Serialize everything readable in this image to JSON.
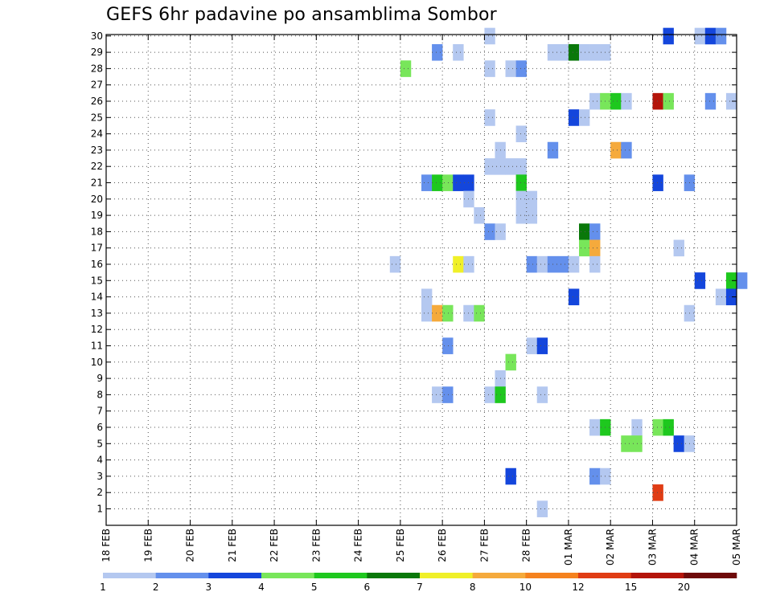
{
  "chart_data": {
    "type": "heatmap",
    "title": "GEFS 6hr padavine po ansamblima Sombor",
    "x_tick_labels": [
      "18 FEB",
      "19 FEB",
      "20 FEB",
      "21 FEB",
      "22 FEB",
      "23 FEB",
      "24 FEB",
      "25 FEB",
      "26 FEB",
      "27 FEB",
      "28 FEB",
      "01 MAR",
      "02 MAR",
      "03 MAR",
      "04 MAR",
      "05 MAR"
    ],
    "y_tick_labels": [
      "1",
      "2",
      "3",
      "4",
      "5",
      "6",
      "7",
      "8",
      "9",
      "10",
      "11",
      "12",
      "13",
      "14",
      "15",
      "16",
      "17",
      "18",
      "19",
      "20",
      "21",
      "22",
      "23",
      "24",
      "25",
      "26",
      "27",
      "28",
      "29",
      "30"
    ],
    "ylim": [
      1,
      30
    ],
    "grid": true,
    "color_scale": {
      "labels": [
        "1",
        "2",
        "3",
        "4",
        "5",
        "6",
        "7",
        "8",
        "10",
        "12",
        "15",
        "20"
      ],
      "colors": [
        "#b4c8f0",
        "#6490ec",
        "#1446dc",
        "#78e65a",
        "#1ec81e",
        "#0a780a",
        "#f0f028",
        "#f5aa3c",
        "#f5821e",
        "#e03c14",
        "#b4140a",
        "#6e0a0a"
      ]
    },
    "cells_note": "each cell: ensemble member, 6-hourly step index from 18 FEB 00z, precipitation level index in color_scale",
    "cells": [
      {
        "m": 30,
        "t": 36,
        "l": 0
      },
      {
        "m": 30,
        "t": 53,
        "l": 2
      },
      {
        "m": 30,
        "t": 56,
        "l": 0
      },
      {
        "m": 30,
        "t": 57,
        "l": 2
      },
      {
        "m": 30,
        "t": 58,
        "l": 1
      },
      {
        "m": 29,
        "t": 31,
        "l": 1
      },
      {
        "m": 29,
        "t": 33,
        "l": 0
      },
      {
        "m": 29,
        "t": 42,
        "l": 0
      },
      {
        "m": 29,
        "t": 43,
        "l": 0
      },
      {
        "m": 29,
        "t": 44,
        "l": 5
      },
      {
        "m": 29,
        "t": 45,
        "l": 0
      },
      {
        "m": 29,
        "t": 46,
        "l": 0
      },
      {
        "m": 29,
        "t": 47,
        "l": 0
      },
      {
        "m": 28,
        "t": 28,
        "l": 3
      },
      {
        "m": 28,
        "t": 36,
        "l": 0
      },
      {
        "m": 28,
        "t": 38,
        "l": 0
      },
      {
        "m": 28,
        "t": 39,
        "l": 1
      },
      {
        "m": 26,
        "t": 46,
        "l": 0
      },
      {
        "m": 26,
        "t": 47,
        "l": 3
      },
      {
        "m": 26,
        "t": 48,
        "l": 4
      },
      {
        "m": 26,
        "t": 49,
        "l": 0
      },
      {
        "m": 26,
        "t": 52,
        "l": 10
      },
      {
        "m": 26,
        "t": 53,
        "l": 3
      },
      {
        "m": 26,
        "t": 57,
        "l": 1
      },
      {
        "m": 26,
        "t": 59,
        "l": 0
      },
      {
        "m": 25,
        "t": 36,
        "l": 0
      },
      {
        "m": 25,
        "t": 44,
        "l": 2
      },
      {
        "m": 25,
        "t": 45,
        "l": 0
      },
      {
        "m": 24,
        "t": 39,
        "l": 0
      },
      {
        "m": 23,
        "t": 37,
        "l": 0
      },
      {
        "m": 23,
        "t": 42,
        "l": 1
      },
      {
        "m": 23,
        "t": 48,
        "l": 7
      },
      {
        "m": 23,
        "t": 49,
        "l": 1
      },
      {
        "m": 22,
        "t": 36,
        "l": 0
      },
      {
        "m": 22,
        "t": 37,
        "l": 0
      },
      {
        "m": 22,
        "t": 38,
        "l": 0
      },
      {
        "m": 22,
        "t": 39,
        "l": 0
      },
      {
        "m": 21,
        "t": 30,
        "l": 1
      },
      {
        "m": 21,
        "t": 31,
        "l": 4
      },
      {
        "m": 21,
        "t": 32,
        "l": 3
      },
      {
        "m": 21,
        "t": 33,
        "l": 2
      },
      {
        "m": 21,
        "t": 34,
        "l": 2
      },
      {
        "m": 21,
        "t": 39,
        "l": 4
      },
      {
        "m": 21,
        "t": 52,
        "l": 2
      },
      {
        "m": 21,
        "t": 55,
        "l": 1
      },
      {
        "m": 20,
        "t": 34,
        "l": 0
      },
      {
        "m": 20,
        "t": 39,
        "l": 0
      },
      {
        "m": 20,
        "t": 40,
        "l": 0
      },
      {
        "m": 19,
        "t": 35,
        "l": 0
      },
      {
        "m": 19,
        "t": 39,
        "l": 0
      },
      {
        "m": 19,
        "t": 40,
        "l": 0
      },
      {
        "m": 18,
        "t": 36,
        "l": 1
      },
      {
        "m": 18,
        "t": 37,
        "l": 0
      },
      {
        "m": 18,
        "t": 45,
        "l": 5
      },
      {
        "m": 18,
        "t": 46,
        "l": 1
      },
      {
        "m": 17,
        "t": 45,
        "l": 3
      },
      {
        "m": 17,
        "t": 46,
        "l": 7
      },
      {
        "m": 17,
        "t": 54,
        "l": 0
      },
      {
        "m": 16,
        "t": 27,
        "l": 0
      },
      {
        "m": 16,
        "t": 33,
        "l": 6
      },
      {
        "m": 16,
        "t": 34,
        "l": 0
      },
      {
        "m": 16,
        "t": 40,
        "l": 1
      },
      {
        "m": 16,
        "t": 41,
        "l": 0
      },
      {
        "m": 16,
        "t": 42,
        "l": 1
      },
      {
        "m": 16,
        "t": 43,
        "l": 1
      },
      {
        "m": 16,
        "t": 44,
        "l": 0
      },
      {
        "m": 16,
        "t": 46,
        "l": 0
      },
      {
        "m": 15,
        "t": 56,
        "l": 2
      },
      {
        "m": 15,
        "t": 59,
        "l": 4
      },
      {
        "m": 15,
        "t": 60,
        "l": 1
      },
      {
        "m": 14,
        "t": 30,
        "l": 0
      },
      {
        "m": 14,
        "t": 44,
        "l": 2
      },
      {
        "m": 14,
        "t": 58,
        "l": 0
      },
      {
        "m": 14,
        "t": 59,
        "l": 2
      },
      {
        "m": 13,
        "t": 30,
        "l": 0
      },
      {
        "m": 13,
        "t": 31,
        "l": 7
      },
      {
        "m": 13,
        "t": 32,
        "l": 3
      },
      {
        "m": 13,
        "t": 34,
        "l": 0
      },
      {
        "m": 13,
        "t": 35,
        "l": 3
      },
      {
        "m": 13,
        "t": 55,
        "l": 0
      },
      {
        "m": 11,
        "t": 32,
        "l": 1
      },
      {
        "m": 11,
        "t": 40,
        "l": 0
      },
      {
        "m": 11,
        "t": 41,
        "l": 2
      },
      {
        "m": 10,
        "t": 38,
        "l": 3
      },
      {
        "m": 9,
        "t": 37,
        "l": 0
      },
      {
        "m": 8,
        "t": 31,
        "l": 0
      },
      {
        "m": 8,
        "t": 32,
        "l": 1
      },
      {
        "m": 8,
        "t": 36,
        "l": 0
      },
      {
        "m": 8,
        "t": 37,
        "l": 4
      },
      {
        "m": 8,
        "t": 41,
        "l": 0
      },
      {
        "m": 6,
        "t": 46,
        "l": 0
      },
      {
        "m": 6,
        "t": 47,
        "l": 4
      },
      {
        "m": 6,
        "t": 50,
        "l": 0
      },
      {
        "m": 6,
        "t": 52,
        "l": 3
      },
      {
        "m": 6,
        "t": 53,
        "l": 4
      },
      {
        "m": 5,
        "t": 49,
        "l": 3
      },
      {
        "m": 5,
        "t": 50,
        "l": 3
      },
      {
        "m": 5,
        "t": 54,
        "l": 2
      },
      {
        "m": 5,
        "t": 55,
        "l": 0
      },
      {
        "m": 3,
        "t": 38,
        "l": 2
      },
      {
        "m": 3,
        "t": 46,
        "l": 1
      },
      {
        "m": 3,
        "t": 47,
        "l": 0
      },
      {
        "m": 2,
        "t": 52,
        "l": 9
      },
      {
        "m": 1,
        "t": 41,
        "l": 0
      }
    ]
  }
}
